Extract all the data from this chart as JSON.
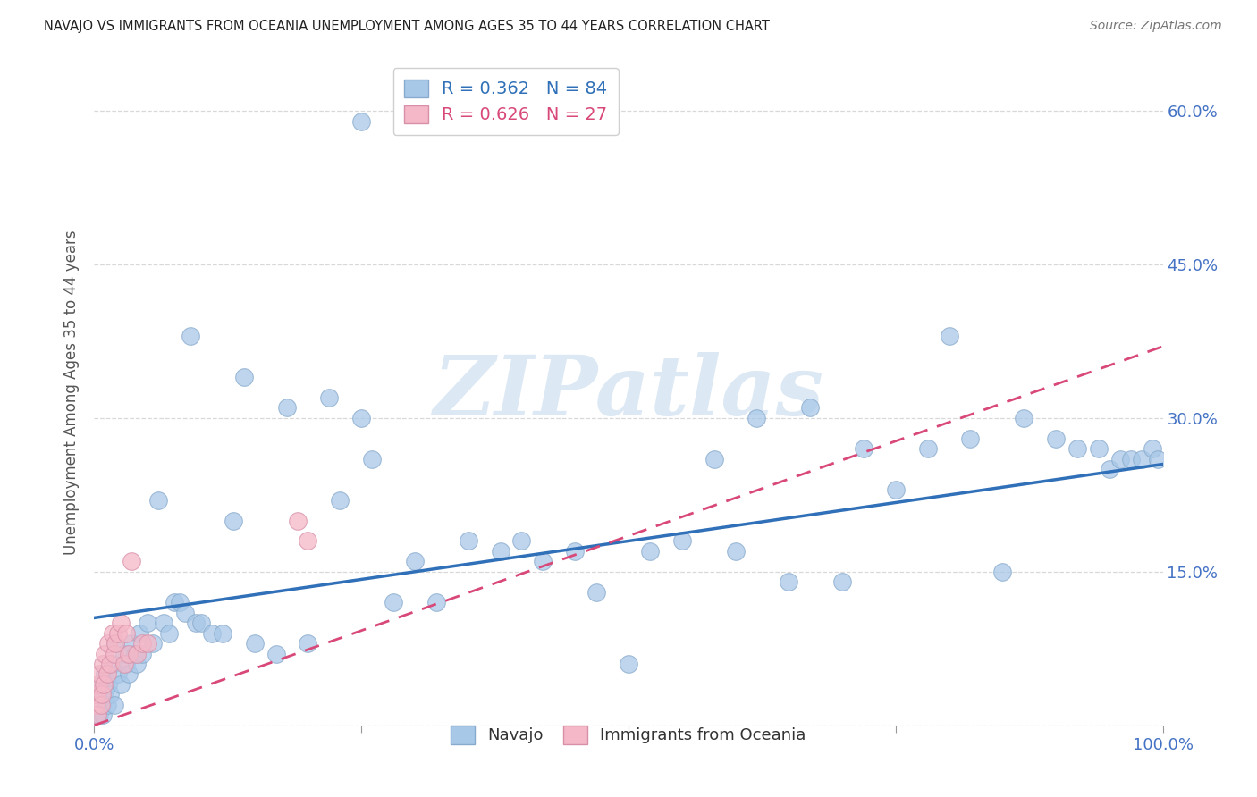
{
  "title": "NAVAJO VS IMMIGRANTS FROM OCEANIA UNEMPLOYMENT AMONG AGES 35 TO 44 YEARS CORRELATION CHART",
  "source": "Source: ZipAtlas.com",
  "ylabel": "Unemployment Among Ages 35 to 44 years",
  "navajo_R": 0.362,
  "navajo_N": 84,
  "oceania_R": 0.626,
  "oceania_N": 27,
  "navajo_color": "#a8c8e8",
  "oceania_color": "#f4b8c8",
  "navajo_line_color": "#3070b8",
  "oceania_line_color": "#d84878",
  "navajo_edge_color": "#88aacc",
  "oceania_edge_color": "#d890a8",
  "watermark_color": "#dce8f4",
  "xlim": [
    0,
    1.0
  ],
  "ylim": [
    0,
    0.65
  ],
  "xticks": [
    0.0,
    0.25,
    0.5,
    0.75,
    1.0
  ],
  "xtick_labels": [
    "0.0%",
    "",
    "",
    "",
    "100.0%"
  ],
  "yticks": [
    0.0,
    0.15,
    0.3,
    0.45,
    0.6
  ],
  "ytick_labels": [
    "",
    "15.0%",
    "30.0%",
    "45.0%",
    "60.0%"
  ],
  "navajo_line_start_y": 0.105,
  "navajo_line_end_y": 0.255,
  "oceania_line_start_y": 0.0,
  "oceania_line_end_y": 0.37,
  "navajo_x": [
    0.001,
    0.002,
    0.003,
    0.004,
    0.005,
    0.006,
    0.007,
    0.008,
    0.009,
    0.01,
    0.012,
    0.013,
    0.015,
    0.017,
    0.019,
    0.02,
    0.022,
    0.025,
    0.028,
    0.03,
    0.032,
    0.035,
    0.038,
    0.04,
    0.042,
    0.045,
    0.05,
    0.055,
    0.06,
    0.065,
    0.07,
    0.075,
    0.08,
    0.085,
    0.09,
    0.095,
    0.1,
    0.11,
    0.12,
    0.13,
    0.14,
    0.15,
    0.17,
    0.18,
    0.2,
    0.22,
    0.25,
    0.28,
    0.3,
    0.32,
    0.35,
    0.38,
    0.4,
    0.42,
    0.45,
    0.47,
    0.5,
    0.52,
    0.55,
    0.58,
    0.6,
    0.62,
    0.65,
    0.67,
    0.7,
    0.72,
    0.75,
    0.78,
    0.8,
    0.82,
    0.85,
    0.87,
    0.9,
    0.92,
    0.94,
    0.95,
    0.96,
    0.97,
    0.98,
    0.99,
    0.995,
    0.23,
    0.25,
    0.26
  ],
  "navajo_y": [
    0.02,
    0.01,
    0.03,
    0.02,
    0.01,
    0.04,
    0.02,
    0.01,
    0.03,
    0.05,
    0.02,
    0.04,
    0.03,
    0.06,
    0.02,
    0.08,
    0.05,
    0.04,
    0.07,
    0.06,
    0.05,
    0.08,
    0.07,
    0.06,
    0.09,
    0.07,
    0.1,
    0.08,
    0.22,
    0.1,
    0.09,
    0.12,
    0.12,
    0.11,
    0.38,
    0.1,
    0.1,
    0.09,
    0.09,
    0.2,
    0.34,
    0.08,
    0.07,
    0.31,
    0.08,
    0.32,
    0.59,
    0.12,
    0.16,
    0.12,
    0.18,
    0.17,
    0.18,
    0.16,
    0.17,
    0.13,
    0.06,
    0.17,
    0.18,
    0.26,
    0.17,
    0.3,
    0.14,
    0.31,
    0.14,
    0.27,
    0.23,
    0.27,
    0.38,
    0.28,
    0.15,
    0.3,
    0.28,
    0.27,
    0.27,
    0.25,
    0.26,
    0.26,
    0.26,
    0.27,
    0.26,
    0.22,
    0.3,
    0.26
  ],
  "oceania_x": [
    0.001,
    0.002,
    0.003,
    0.004,
    0.005,
    0.006,
    0.007,
    0.008,
    0.009,
    0.01,
    0.012,
    0.013,
    0.015,
    0.017,
    0.019,
    0.02,
    0.022,
    0.025,
    0.028,
    0.03,
    0.032,
    0.035,
    0.04,
    0.045,
    0.05,
    0.19,
    0.2
  ],
  "oceania_y": [
    0.02,
    0.03,
    0.01,
    0.04,
    0.05,
    0.02,
    0.03,
    0.06,
    0.04,
    0.07,
    0.05,
    0.08,
    0.06,
    0.09,
    0.07,
    0.08,
    0.09,
    0.1,
    0.06,
    0.09,
    0.07,
    0.16,
    0.07,
    0.08,
    0.08,
    0.2,
    0.18
  ]
}
